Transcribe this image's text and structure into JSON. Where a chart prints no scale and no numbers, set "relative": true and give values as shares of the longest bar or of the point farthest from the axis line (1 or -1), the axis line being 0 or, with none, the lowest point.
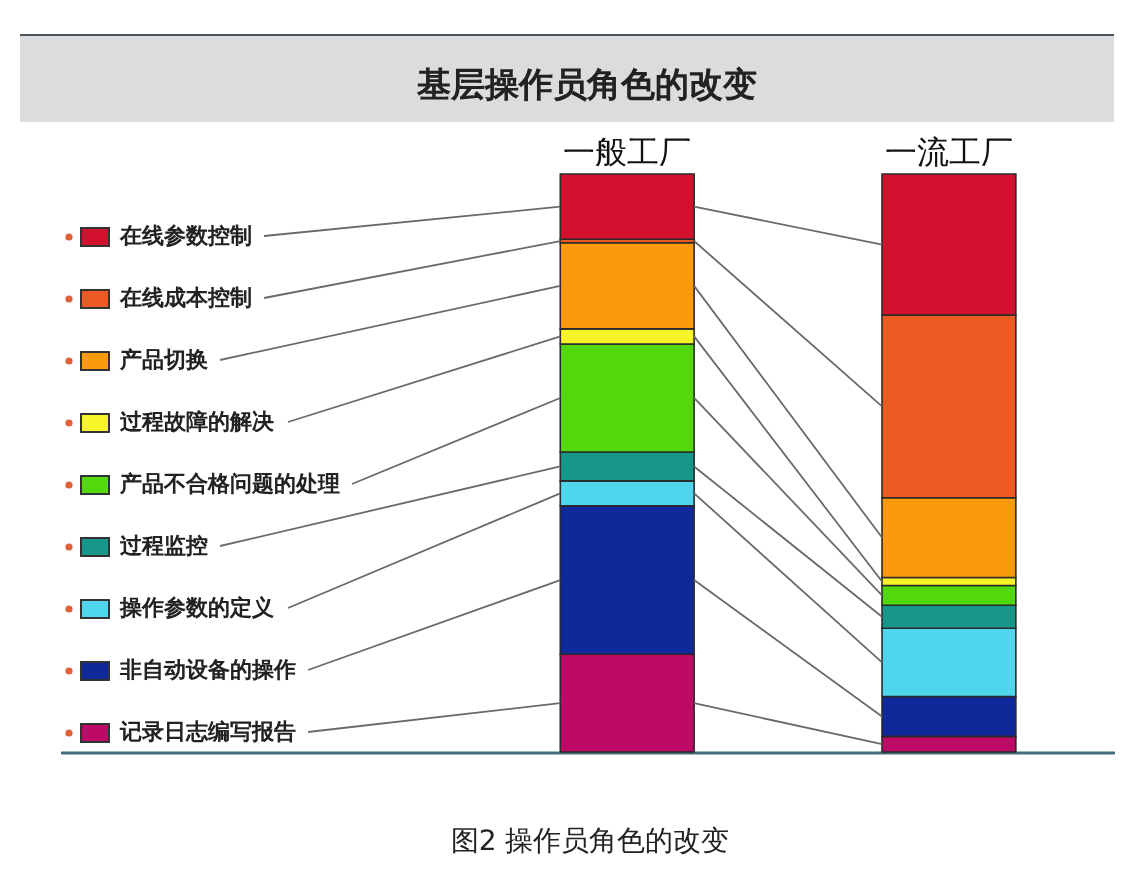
{
  "chart_data": {
    "type": "bar",
    "title": "基层操作员角色的改变",
    "annotations": [
      "图2 操作员角色的改变"
    ],
    "categories": [
      "一般工厂",
      "一流工厂"
    ],
    "stacked": true,
    "relative": true,
    "legend": "left",
    "series": [
      {
        "name": "记录日志编写报告",
        "color": "#bd0a66",
        "values": [
          0.169,
          0.027
        ]
      },
      {
        "name": "非自动设备的操作",
        "color": "#10299a",
        "values": [
          0.257,
          0.069
        ]
      },
      {
        "name": "操作参数的定义",
        "color": "#4fd5ec",
        "values": [
          0.043,
          0.118
        ]
      },
      {
        "name": "过程监控",
        "color": "#17968a",
        "values": [
          0.05,
          0.04
        ]
      },
      {
        "name": "产品不合格问题的处理",
        "color": "#52d80c",
        "values": [
          0.187,
          0.034
        ]
      },
      {
        "name": "过程故障的解决",
        "color": "#f8f42a",
        "values": [
          0.026,
          0.014
        ]
      },
      {
        "name": "产品切换",
        "color": "#fb9a0b",
        "values": [
          0.149,
          0.138
        ]
      },
      {
        "name": "在线成本控制",
        "color": "#ee5b22",
        "values": [
          0.006,
          0.316
        ]
      },
      {
        "name": "在线参数控制",
        "color": "#d2112e",
        "values": [
          0.113,
          0.244
        ]
      }
    ]
  }
}
